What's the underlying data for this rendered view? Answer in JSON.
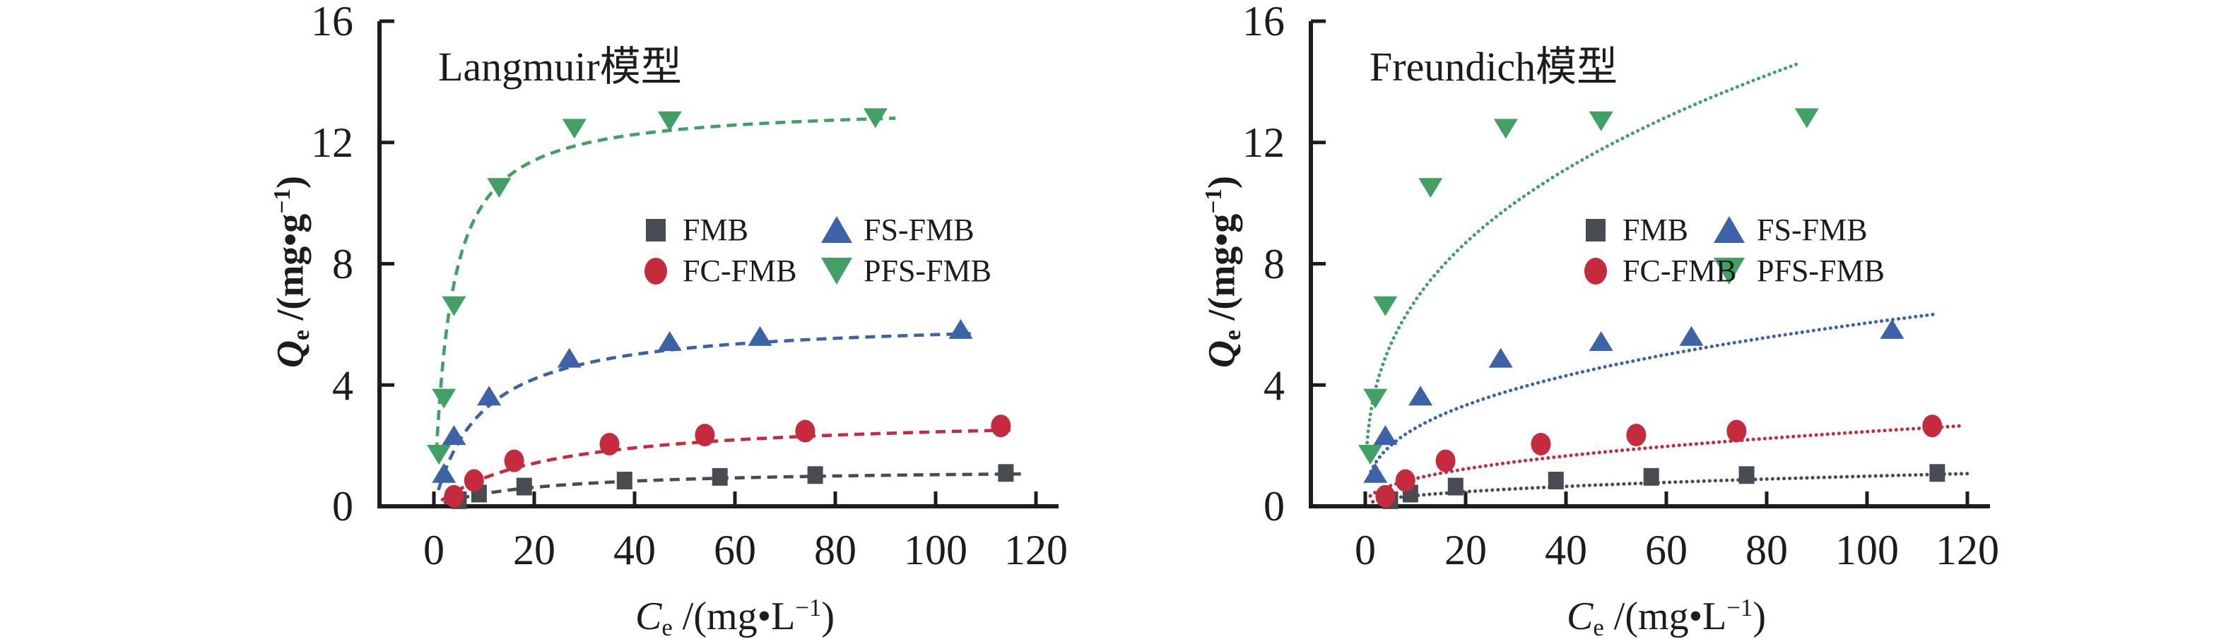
{
  "colors": {
    "axis": "#1c1c1c",
    "FMB": "#474c52",
    "FC-FMB": "#c52b3c",
    "FS-FMB": "#3c63a8",
    "PFS-FMB": "#41a064"
  },
  "axes": {
    "x": {
      "label_var": "C",
      "label_sub": "e",
      "label_mid": " /(mg•L",
      "label_sup": "−1",
      "label_close": ")",
      "ticks": [
        "0",
        "20",
        "40",
        "60",
        "80",
        "100",
        "120"
      ]
    },
    "y": {
      "label_var": "Q",
      "label_sub": "e",
      "label_mid": " /(mg•g",
      "label_sup": "−1",
      "label_close": ")",
      "ticks": [
        "16",
        "12",
        "8",
        "4",
        "0"
      ]
    }
  },
  "legend": {
    "items": [
      {
        "label": "FMB",
        "marker": "square"
      },
      {
        "label": "FC-FMB",
        "marker": "circle"
      },
      {
        "label": "FS-FMB",
        "marker": "triangle-up"
      },
      {
        "label": "PFS-FMB",
        "marker": "triangle-down"
      }
    ]
  },
  "chart_data": [
    {
      "type": "scatter",
      "title": "Langmuir模型",
      "fit_model": "langmuir",
      "fit_line_style": "dashed",
      "xlabel": "Ce /(mg·L−1)",
      "ylabel": "Qe /(mg·g−1)",
      "xlim": [
        0,
        120
      ],
      "ylim": [
        0,
        16
      ],
      "x_tick_step": 20,
      "y_tick_step": 4,
      "series": [
        {
          "name": "FMB",
          "marker": "square",
          "color": "#474c52",
          "points": [
            [
              5,
              0.2
            ],
            [
              9,
              0.42
            ],
            [
              18,
              0.65
            ],
            [
              38,
              0.85
            ],
            [
              57,
              0.97
            ],
            [
              76,
              1.03
            ],
            [
              114,
              1.1
            ]
          ],
          "fit_params": {
            "qm": 1.25,
            "KL": 0.05
          },
          "fit_x_range": [
            2,
            118
          ]
        },
        {
          "name": "FC-FMB",
          "marker": "circle",
          "color": "#c52b3c",
          "points": [
            [
              4,
              0.33
            ],
            [
              8,
              0.85
            ],
            [
              16,
              1.5
            ],
            [
              35,
              2.05
            ],
            [
              54,
              2.35
            ],
            [
              74,
              2.48
            ],
            [
              113,
              2.65
            ]
          ],
          "fit_params": {
            "qm": 3.0,
            "KL": 0.045
          },
          "fit_x_range": [
            1.5,
            116
          ]
        },
        {
          "name": "FS-FMB",
          "marker": "triangle-up",
          "color": "#3c63a8",
          "points": [
            [
              2,
              1.1
            ],
            [
              4,
              2.35
            ],
            [
              11,
              3.65
            ],
            [
              27,
              4.9
            ],
            [
              47,
              5.45
            ],
            [
              65,
              5.62
            ],
            [
              105,
              5.85
            ]
          ],
          "fit_params": {
            "qm": 6.2,
            "KL": 0.105
          },
          "fit_x_range": [
            0.9,
            107
          ]
        },
        {
          "name": "PFS-FMB",
          "marker": "triangle-down",
          "color": "#41a064",
          "points": [
            [
              1,
              1.7
            ],
            [
              2,
              3.55
            ],
            [
              4,
              6.6
            ],
            [
              13,
              10.5
            ],
            [
              28,
              12.45
            ],
            [
              47,
              12.7
            ],
            [
              88,
              12.8
            ]
          ],
          "fit_params": {
            "qm": 13.25,
            "KL": 0.31
          },
          "fit_x_range": [
            0.5,
            92
          ]
        }
      ]
    },
    {
      "type": "scatter",
      "title": "Freundich模型",
      "fit_model": "freundlich",
      "fit_line_style": "dotted",
      "xlabel": "Ce /(mg·L−1)",
      "ylabel": "Qe /(mg·g−1)",
      "xlim": [
        0,
        120
      ],
      "ylim": [
        0,
        16
      ],
      "x_tick_step": 20,
      "y_tick_step": 4,
      "series": [
        {
          "name": "FMB",
          "marker": "square",
          "color": "#474c52",
          "points": [
            [
              5,
              0.2
            ],
            [
              9,
              0.42
            ],
            [
              18,
              0.65
            ],
            [
              38,
              0.85
            ],
            [
              57,
              0.97
            ],
            [
              76,
              1.03
            ],
            [
              114,
              1.1
            ]
          ],
          "fit_params": {
            "KF": 0.125,
            "n_exp": 0.45
          },
          "fit_x_range": [
            1.5,
            120
          ]
        },
        {
          "name": "FC-FMB",
          "marker": "circle",
          "color": "#c52b3c",
          "points": [
            [
              4,
              0.33
            ],
            [
              8,
              0.85
            ],
            [
              16,
              1.5
            ],
            [
              35,
              2.05
            ],
            [
              54,
              2.35
            ],
            [
              74,
              2.48
            ],
            [
              113,
              2.65
            ]
          ],
          "fit_params": {
            "KF": 0.34,
            "n_exp": 0.43
          },
          "fit_x_range": [
            1,
            119
          ]
        },
        {
          "name": "FS-FMB",
          "marker": "triangle-up",
          "color": "#3c63a8",
          "points": [
            [
              2,
              1.1
            ],
            [
              4,
              2.35
            ],
            [
              11,
              3.65
            ],
            [
              27,
              4.9
            ],
            [
              47,
              5.45
            ],
            [
              65,
              5.62
            ],
            [
              105,
              5.85
            ]
          ],
          "fit_params": {
            "KF": 1.1,
            "n_exp": 0.37
          },
          "fit_x_range": [
            0.7,
            114
          ]
        },
        {
          "name": "PFS-FMB",
          "marker": "triangle-down",
          "color": "#41a064",
          "points": [
            [
              1,
              1.7
            ],
            [
              2,
              3.55
            ],
            [
              4,
              6.6
            ],
            [
              13,
              10.5
            ],
            [
              28,
              12.45
            ],
            [
              47,
              12.7
            ],
            [
              88,
              12.8
            ]
          ],
          "fit_params": {
            "KF": 3.0,
            "n_exp": 0.355
          },
          "fit_x_range": [
            0.28,
            86
          ]
        }
      ]
    }
  ]
}
